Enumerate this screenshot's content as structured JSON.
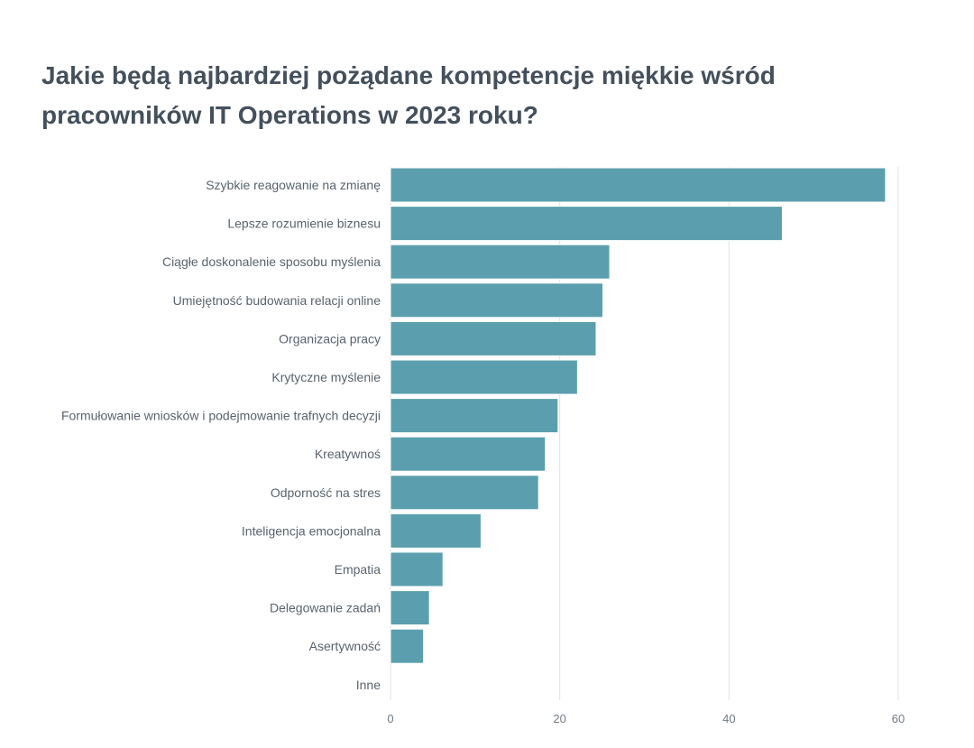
{
  "title_lines": [
    "Jakie będą najbardziej pożądane kompetencje miękkie wśród",
    "pracowników IT Operations w 2023 roku?"
  ],
  "colors": {
    "bar": "#5b9fae",
    "title": "#44505c",
    "grid": "#dfe2e5"
  },
  "chart_data": {
    "type": "bar",
    "orientation": "horizontal",
    "title": "Jakie będą najbardziej pożądane kompetencje miękkie wśród pracowników IT Operations w 2023 roku?",
    "categories": [
      "Szybkie reagowanie na zmianę",
      "Lepsze rozumienie biznesu",
      "Ciągłe doskonalenie sposobu myślenia",
      "Umiejętność budowania relacji online",
      "Organizacja pracy",
      "Krytyczne myślenie",
      "Formułowanie wniosków i podejmowanie trafnych decyzji",
      "Kreatywnoś",
      "Odporność na stres",
      "Inteligencja emocjonalna",
      "Empatia",
      "Delegowanie zadań",
      "Asertywność",
      "Inne"
    ],
    "values": [
      58.5,
      46.3,
      25.9,
      25.1,
      24.3,
      22.1,
      19.8,
      18.3,
      17.5,
      10.7,
      6.2,
      4.6,
      3.9,
      0
    ],
    "xlim": [
      0,
      60
    ],
    "xticks": [
      0,
      20,
      40,
      60
    ],
    "xlabel": "",
    "ylabel": "",
    "grid": true,
    "legend": "none"
  }
}
